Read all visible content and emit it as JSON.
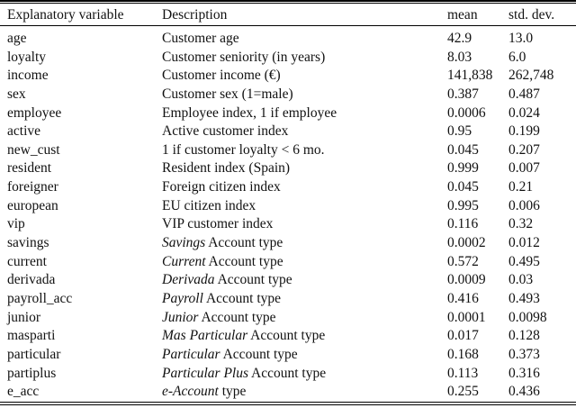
{
  "table": {
    "headers": {
      "variable": "Explanatory variable",
      "description": "Description",
      "mean": "mean",
      "std": "std. dev."
    },
    "rows": [
      {
        "variable": "age",
        "desc_italic": "",
        "desc_rest": "Customer age",
        "mean": "42.9",
        "std": "13.0"
      },
      {
        "variable": "loyalty",
        "desc_italic": "",
        "desc_rest": "Customer seniority (in years)",
        "mean": "8.03",
        "std": "6.0"
      },
      {
        "variable": "income",
        "desc_italic": "",
        "desc_rest": "Customer income (€)",
        "mean": "141,838",
        "std": "262,748"
      },
      {
        "variable": "sex",
        "desc_italic": "",
        "desc_rest": "Customer sex (1=male)",
        "mean": "0.387",
        "std": "0.487"
      },
      {
        "variable": "employee",
        "desc_italic": "",
        "desc_rest": "Employee index, 1 if employee",
        "mean": "0.0006",
        "std": "0.024"
      },
      {
        "variable": "active",
        "desc_italic": "",
        "desc_rest": "Active customer index",
        "mean": "0.95",
        "std": "0.199"
      },
      {
        "variable": "new_cust",
        "desc_italic": "",
        "desc_rest": "1 if customer loyalty < 6 mo.",
        "mean": "0.045",
        "std": "0.207"
      },
      {
        "variable": "resident",
        "desc_italic": "",
        "desc_rest": "Resident index (Spain)",
        "mean": "0.999",
        "std": "0.007"
      },
      {
        "variable": "foreigner",
        "desc_italic": "",
        "desc_rest": "Foreign citizen index",
        "mean": "0.045",
        "std": "0.21"
      },
      {
        "variable": "european",
        "desc_italic": "",
        "desc_rest": "EU citizen index",
        "mean": "0.995",
        "std": "0.006"
      },
      {
        "variable": "vip",
        "desc_italic": "",
        "desc_rest": "VIP customer index",
        "mean": "0.116",
        "std": "0.32"
      },
      {
        "variable": "savings",
        "desc_italic": "Savings",
        "desc_rest": " Account type",
        "mean": "0.0002",
        "std": "0.012"
      },
      {
        "variable": "current",
        "desc_italic": "Current",
        "desc_rest": " Account type",
        "mean": "0.572",
        "std": "0.495"
      },
      {
        "variable": "derivada",
        "desc_italic": "Derivada",
        "desc_rest": " Account type",
        "mean": "0.0009",
        "std": "0.03"
      },
      {
        "variable": "payroll_acc",
        "desc_italic": "Payroll",
        "desc_rest": " Account type",
        "mean": "0.416",
        "std": "0.493"
      },
      {
        "variable": "junior",
        "desc_italic": "Junior",
        "desc_rest": " Account type",
        "mean": "0.0001",
        "std": "0.0098"
      },
      {
        "variable": "masparti",
        "desc_italic": "Mas Particular",
        "desc_rest": " Account type",
        "mean": "0.017",
        "std": "0.128"
      },
      {
        "variable": "particular",
        "desc_italic": "Particular",
        "desc_rest": " Account type",
        "mean": "0.168",
        "std": "0.373"
      },
      {
        "variable": "partiplus",
        "desc_italic": "Particular Plus",
        "desc_rest": " Account type",
        "mean": "0.113",
        "std": "0.316"
      },
      {
        "variable": "e_acc",
        "desc_italic": "e-Account",
        "desc_rest": " type",
        "mean": "0.255",
        "std": "0.436"
      }
    ]
  }
}
